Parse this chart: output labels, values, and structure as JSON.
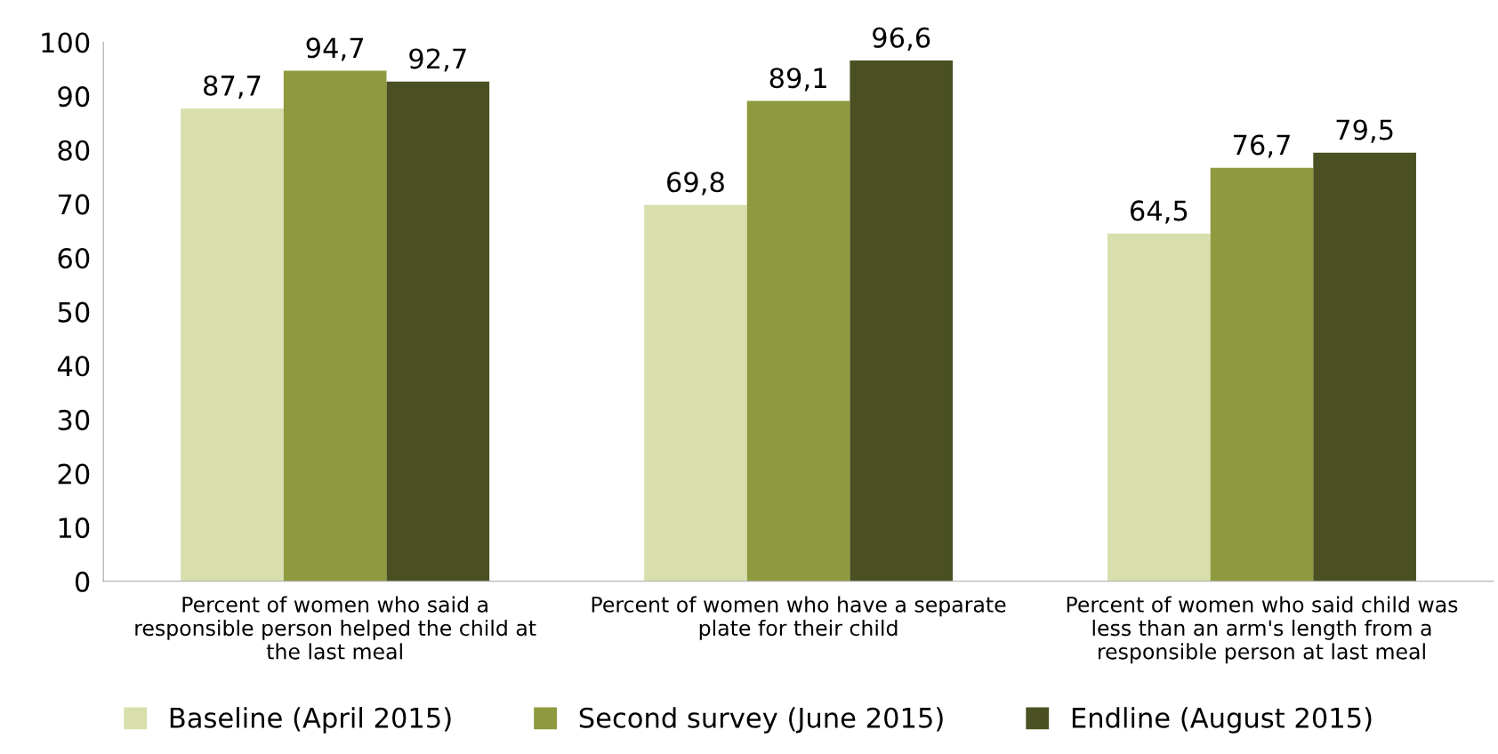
{
  "chart_data": {
    "type": "bar",
    "categories": [
      "Percent of women who said a\nresponsible person helped the child at\nthe last meal",
      "Percent of women who have a separate\nplate for their child",
      "Percent of women who said child was\nless than an arm's length from a\nresponsible person at last meal"
    ],
    "series": [
      {
        "name": "Baseline (April 2015)",
        "color": "#d8dfad",
        "values": [
          87.7,
          69.8,
          64.5
        ],
        "value_labels": [
          "87,7",
          "69,8",
          "64,5"
        ]
      },
      {
        "name": "Second survey (June 2015)",
        "color": "#8f9a3f",
        "values": [
          94.7,
          89.1,
          76.7
        ],
        "value_labels": [
          "94,7",
          "89,1",
          "76,7"
        ]
      },
      {
        "name": "Endline (August 2015)",
        "color": "#4a5022",
        "values": [
          92.7,
          96.6,
          79.5
        ],
        "value_labels": [
          "92,7",
          "96,6",
          "79,5"
        ]
      }
    ],
    "ylim": [
      0,
      100
    ],
    "yticks": [
      0,
      10,
      20,
      30,
      40,
      50,
      60,
      70,
      80,
      90,
      100
    ],
    "grid": false,
    "legend": "bottom"
  }
}
